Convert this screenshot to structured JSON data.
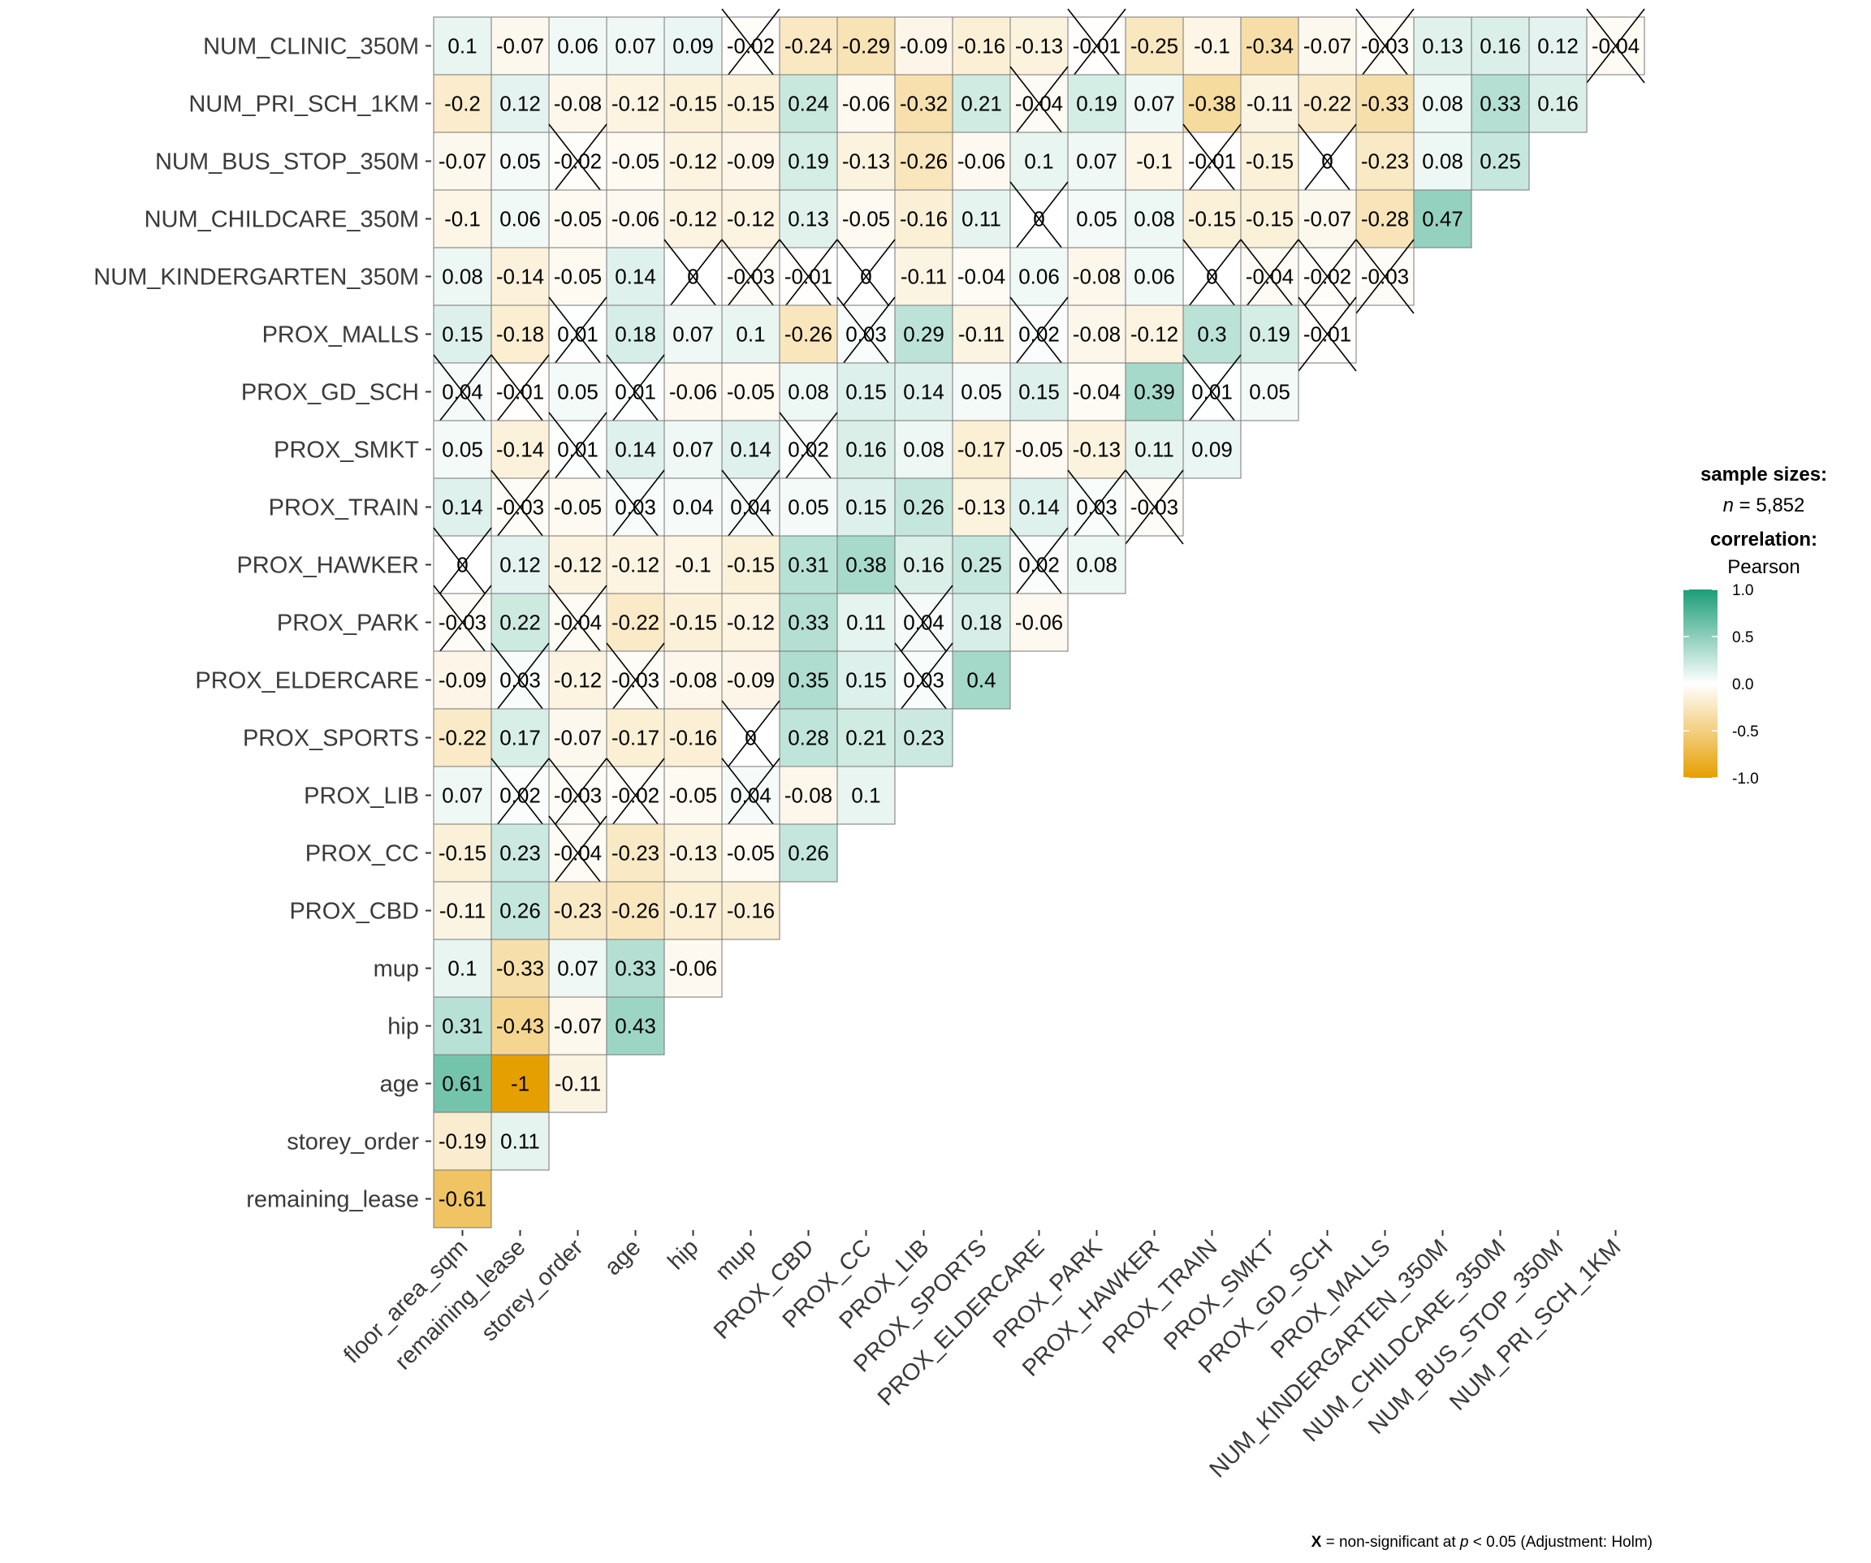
{
  "chart_data": {
    "type": "heatmap",
    "title": "",
    "columns": [
      "floor_area_sqm",
      "remaining_lease",
      "storey_order",
      "age",
      "hip",
      "mup",
      "PROX_CBD",
      "PROX_CC",
      "PROX_LIB",
      "PROX_SPORTS",
      "PROX_ELDERCARE",
      "PROX_PARK",
      "PROX_HAWKER",
      "PROX_TRAIN",
      "PROX_SMKT",
      "PROX_GD_SCH",
      "PROX_MALLS",
      "NUM_KINDERGARTEN_350M",
      "NUM_CHILDCARE_350M",
      "NUM_BUS_STOP_350M",
      "NUM_PRI_SCH_1KM"
    ],
    "rows": [
      {
        "label": "NUM_CLINIC_350M",
        "values": [
          0.1,
          -0.07,
          0.06,
          0.07,
          0.09,
          -0.02,
          -0.24,
          -0.29,
          -0.09,
          -0.16,
          -0.13,
          -0.01,
          -0.25,
          -0.1,
          -0.34,
          -0.07,
          -0.03,
          0.13,
          0.16,
          0.12,
          -0.04
        ],
        "nonsig": [
          5,
          11,
          16,
          20
        ]
      },
      {
        "label": "NUM_PRI_SCH_1KM",
        "values": [
          -0.2,
          0.12,
          -0.08,
          -0.12,
          -0.15,
          -0.15,
          0.24,
          -0.06,
          -0.32,
          0.21,
          -0.04,
          0.19,
          0.07,
          -0.38,
          -0.11,
          -0.22,
          -0.33,
          0.08,
          0.33,
          0.16
        ],
        "nonsig": [
          10
        ]
      },
      {
        "label": "NUM_BUS_STOP_350M",
        "values": [
          -0.07,
          0.05,
          -0.02,
          -0.05,
          -0.12,
          -0.09,
          0.19,
          -0.13,
          -0.26,
          -0.06,
          0.1,
          0.07,
          -0.1,
          -0.01,
          -0.15,
          0,
          -0.23,
          0.08,
          0.25
        ],
        "nonsig": [
          2,
          13,
          15
        ]
      },
      {
        "label": "NUM_CHILDCARE_350M",
        "values": [
          -0.1,
          0.06,
          -0.05,
          -0.06,
          -0.12,
          -0.12,
          0.13,
          -0.05,
          -0.16,
          0.11,
          0,
          0.05,
          0.08,
          -0.15,
          -0.15,
          -0.07,
          -0.28,
          0.47
        ],
        "nonsig": [
          10
        ]
      },
      {
        "label": "NUM_KINDERGARTEN_350M",
        "values": [
          0.08,
          -0.14,
          -0.05,
          0.14,
          0,
          -0.03,
          -0.01,
          0,
          -0.11,
          -0.04,
          0.06,
          -0.08,
          0.06,
          0,
          -0.04,
          -0.02,
          -0.03
        ],
        "nonsig": [
          4,
          5,
          6,
          7,
          13,
          14,
          15,
          16
        ]
      },
      {
        "label": "PROX_MALLS",
        "values": [
          0.15,
          -0.18,
          0.01,
          0.18,
          0.07,
          0.1,
          -0.26,
          0.03,
          0.29,
          -0.11,
          0.02,
          -0.08,
          -0.12,
          0.3,
          0.19,
          -0.01
        ],
        "nonsig": [
          2,
          7,
          10,
          15
        ]
      },
      {
        "label": "PROX_GD_SCH",
        "values": [
          0.04,
          -0.01,
          0.05,
          0.01,
          -0.06,
          -0.05,
          0.08,
          0.15,
          0.14,
          0.05,
          0.15,
          -0.04,
          0.39,
          0.01,
          0.05
        ],
        "nonsig": [
          0,
          1,
          3,
          13
        ]
      },
      {
        "label": "PROX_SMKT",
        "values": [
          0.05,
          -0.14,
          0.01,
          0.14,
          0.07,
          0.14,
          0.02,
          0.16,
          0.08,
          -0.17,
          -0.05,
          -0.13,
          0.11,
          0.09
        ],
        "nonsig": [
          2,
          6
        ]
      },
      {
        "label": "PROX_TRAIN",
        "values": [
          0.14,
          -0.03,
          -0.05,
          0.03,
          0.04,
          0.04,
          0.05,
          0.15,
          0.26,
          -0.13,
          0.14,
          0.03,
          -0.03
        ],
        "nonsig": [
          1,
          3,
          5,
          11,
          12
        ]
      },
      {
        "label": "PROX_HAWKER",
        "values": [
          0,
          0.12,
          -0.12,
          -0.12,
          -0.1,
          -0.15,
          0.31,
          0.38,
          0.16,
          0.25,
          0.02,
          0.08
        ],
        "nonsig": [
          0,
          10
        ]
      },
      {
        "label": "PROX_PARK",
        "values": [
          -0.03,
          0.22,
          -0.04,
          -0.22,
          -0.15,
          -0.12,
          0.33,
          0.11,
          0.04,
          0.18,
          -0.06
        ],
        "nonsig": [
          0,
          2,
          8
        ]
      },
      {
        "label": "PROX_ELDERCARE",
        "values": [
          -0.09,
          0.03,
          -0.12,
          -0.03,
          -0.08,
          -0.09,
          0.35,
          0.15,
          0.03,
          0.4
        ],
        "nonsig": [
          1,
          3,
          8
        ]
      },
      {
        "label": "PROX_SPORTS",
        "values": [
          -0.22,
          0.17,
          -0.07,
          -0.17,
          -0.16,
          0,
          0.28,
          0.21,
          0.23
        ],
        "nonsig": [
          5
        ]
      },
      {
        "label": "PROX_LIB",
        "values": [
          0.07,
          0.02,
          -0.03,
          -0.02,
          -0.05,
          0.04,
          -0.08,
          0.1
        ],
        "nonsig": [
          1,
          2,
          3,
          5
        ]
      },
      {
        "label": "PROX_CC",
        "values": [
          -0.15,
          0.23,
          -0.04,
          -0.23,
          -0.13,
          -0.05,
          0.26
        ],
        "nonsig": [
          2
        ]
      },
      {
        "label": "PROX_CBD",
        "values": [
          -0.11,
          0.26,
          -0.23,
          -0.26,
          -0.17,
          -0.16
        ],
        "nonsig": []
      },
      {
        "label": "mup",
        "values": [
          0.1,
          -0.33,
          0.07,
          0.33,
          -0.06
        ],
        "nonsig": []
      },
      {
        "label": "hip",
        "values": [
          0.31,
          -0.43,
          -0.07,
          0.43
        ],
        "nonsig": []
      },
      {
        "label": "age",
        "values": [
          0.61,
          -1,
          -0.11
        ],
        "nonsig": []
      },
      {
        "label": "storey_order",
        "values": [
          -0.19,
          0.11
        ],
        "nonsig": []
      },
      {
        "label": "remaining_lease",
        "values": [
          -0.61
        ],
        "nonsig": []
      }
    ],
    "colors": {
      "low": "#E69F00",
      "mid": "#FFFFFF",
      "high": "#1B9E77"
    },
    "color_range": [
      -1,
      1
    ],
    "legend": {
      "placement": "right",
      "sample_title": "sample sizes:",
      "n_symbol": "n",
      "n_value": " = 5,852",
      "corr_title": "correlation:",
      "corr_method": "Pearson",
      "ticks": [
        "1.0",
        "0.5",
        "0.0",
        "-0.5",
        "-1.0"
      ],
      "tick_values": [
        1.0,
        0.5,
        0.0,
        -0.5,
        -1.0
      ]
    },
    "caption": {
      "x": "X",
      "mid": " = non-significant at ",
      "p": "p",
      "rest": " < 0.05 (Adjustment: Holm)"
    }
  }
}
